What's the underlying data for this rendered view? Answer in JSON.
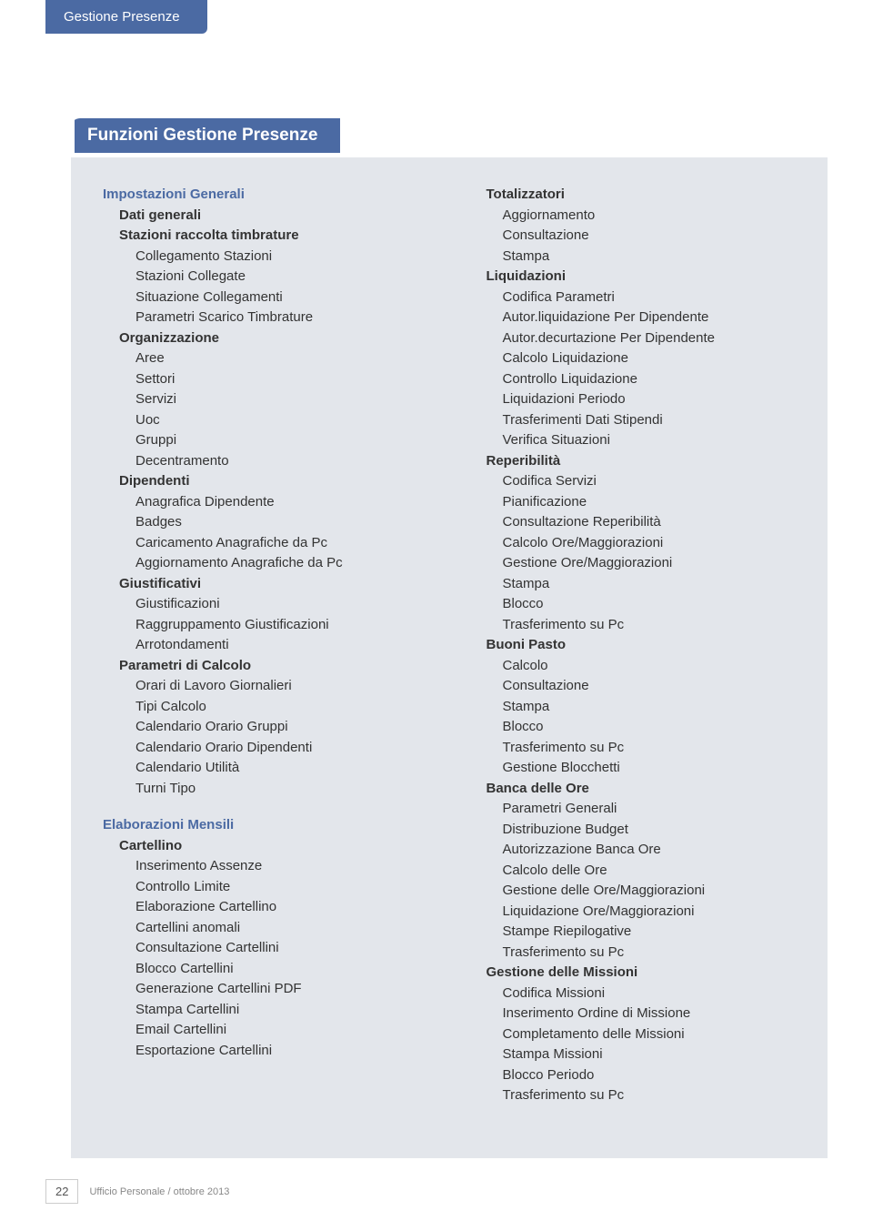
{
  "colors": {
    "tab_bg": "#4b6aa3",
    "tab_text": "#ffffff",
    "content_bg": "#e3e6eb",
    "h1_color": "#4b6aa3",
    "body_text": "#333333",
    "page_bg": "#ffffff"
  },
  "header_tab": "Gestione Presenze",
  "section_title": "Funzioni Gestione Presenze",
  "left": {
    "s1": {
      "title": "Impostazioni Generali",
      "g1": {
        "title": "Dati generali"
      },
      "g2": {
        "title": "Stazioni raccolta timbrature",
        "i1": "Collegamento Stazioni",
        "i2": "Stazioni Collegate",
        "i3": "Situazione Collegamenti",
        "i4": "Parametri Scarico Timbrature"
      },
      "g3": {
        "title": "Organizzazione",
        "i1": "Aree",
        "i2": "Settori",
        "i3": "Servizi",
        "i4": "Uoc",
        "i5": "Gruppi",
        "i6": "Decentramento"
      },
      "g4": {
        "title": "Dipendenti",
        "i1": "Anagrafica Dipendente",
        "i2": "Badges",
        "i3": "Caricamento Anagrafiche da Pc",
        "i4": "Aggiornamento Anagrafiche da Pc"
      },
      "g5": {
        "title": "Giustificativi",
        "i1": "Giustificazioni",
        "i2": "Raggruppamento Giustificazioni",
        "i3": "Arrotondamenti"
      },
      "g6": {
        "title": "Parametri di Calcolo",
        "i1": "Orari di Lavoro Giornalieri",
        "i2": "Tipi Calcolo",
        "i3": "Calendario Orario Gruppi",
        "i4": "Calendario Orario Dipendenti",
        "i5": "Calendario Utilità",
        "i6": "Turni Tipo"
      }
    },
    "s2": {
      "title": "Elaborazioni Mensili",
      "g1": {
        "title": "Cartellino",
        "i1": "Inserimento Assenze",
        "i2": "Controllo Limite",
        "i3": "Elaborazione Cartellino",
        "i4": "Cartellini anomali",
        "i5": "Consultazione Cartellini",
        "i6": "Blocco Cartellini",
        "i7": "Generazione Cartellini PDF",
        "i8": "Stampa Cartellini",
        "i9": "Email Cartellini",
        "i10": "Esportazione Cartellini"
      }
    }
  },
  "right": {
    "g1": {
      "title": "Totalizzatori",
      "i1": "Aggiornamento",
      "i2": "Consultazione",
      "i3": "Stampa"
    },
    "g2": {
      "title": "Liquidazioni",
      "i1": "Codifica Parametri",
      "i2": "Autor.liquidazione Per Dipendente",
      "i3": "Autor.decurtazione Per Dipendente",
      "i4": "Calcolo Liquidazione",
      "i5": "Controllo Liquidazione",
      "i6": "Liquidazioni Periodo",
      "i7": "Trasferimenti Dati Stipendi",
      "i8": "Verifica Situazioni"
    },
    "g3": {
      "title": "Reperibilità",
      "i1": "Codifica Servizi",
      "i2": "Pianificazione",
      "i3": "Consultazione Reperibilità",
      "i4": "Calcolo Ore/Maggiorazioni",
      "i5": "Gestione Ore/Maggiorazioni",
      "i6": "Stampa",
      "i7": "Blocco",
      "i8": "Trasferimento su Pc"
    },
    "g4": {
      "title": "Buoni Pasto",
      "i1": "Calcolo",
      "i2": "Consultazione",
      "i3": "Stampa",
      "i4": "Blocco",
      "i5": "Trasferimento su Pc",
      "i6": "Gestione Blocchetti"
    },
    "g5": {
      "title": "Banca delle Ore",
      "i1": "Parametri Generali",
      "i2": "Distribuzione Budget",
      "i3": "Autorizzazione Banca Ore",
      "i4": "Calcolo delle Ore",
      "i5": "Gestione delle Ore/Maggiorazioni",
      "i6": "Liquidazione Ore/Maggiorazioni",
      "i7": "Stampe Riepilogative",
      "i8": "Trasferimento su Pc"
    },
    "g6": {
      "title": "Gestione delle Missioni",
      "i1": "Codifica Missioni",
      "i2": "Inserimento Ordine di Missione",
      "i3": "Completamento delle Missioni",
      "i4": "Stampa Missioni",
      "i5": "Blocco Periodo",
      "i6": "Trasferimento su Pc"
    }
  },
  "footer": {
    "page": "22",
    "text": "Ufficio Personale / ottobre 2013"
  }
}
